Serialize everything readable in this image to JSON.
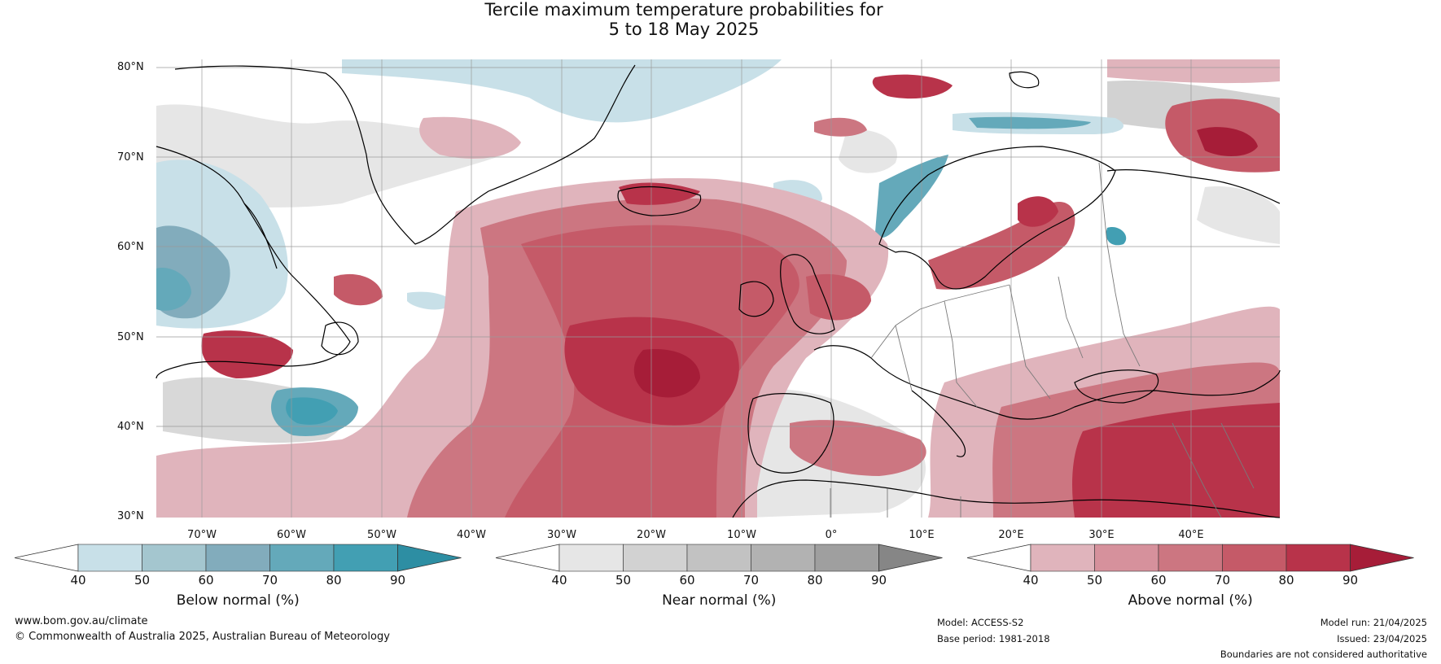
{
  "title": {
    "line1": "Tercile maximum temperature probabilities for",
    "line2": "5 to 18 May 2025"
  },
  "map": {
    "lat_labels": [
      "80°N",
      "70°N",
      "60°N",
      "50°N",
      "40°N",
      "30°N"
    ],
    "lon_labels": [
      "70°W",
      "60°W",
      "50°W",
      "40°W",
      "30°W",
      "20°W",
      "10°W",
      "0°",
      "10°E",
      "20°E",
      "30°E",
      "40°E"
    ],
    "extent": {
      "lon_min": -75,
      "lon_max": 50,
      "lat_min": 30,
      "lat_max": 81
    },
    "colors": {
      "ocean_below": [
        "#c8e0e8",
        "#a4c6cf",
        "#82acbc",
        "#64a9ba",
        "#429fb3",
        "#2d8ea3"
      ],
      "near": [
        "#e6e6e6",
        "#d2d2d2",
        "#c2c2c2",
        "#b2b2b2",
        "#9f9f9f",
        "#868686"
      ],
      "above": [
        "#e0b4bc",
        "#d6919c",
        "#cc7681",
        "#c55a68",
        "#b8334a",
        "#a61d38"
      ],
      "coast": "#000000",
      "border": "#7a7a7a",
      "grid": "#9a9a9a"
    }
  },
  "colorbars": [
    {
      "name": "below",
      "label": "Below normal (%)",
      "ticks": [
        "40",
        "50",
        "60",
        "70",
        "80",
        "90"
      ],
      "colors": [
        "#ffffff",
        "#c8e0e8",
        "#a4c6cf",
        "#82acbc",
        "#64a9ba",
        "#429fb3",
        "#2d8ea3"
      ]
    },
    {
      "name": "near",
      "label": "Near normal (%)",
      "ticks": [
        "40",
        "50",
        "60",
        "70",
        "80",
        "90"
      ],
      "colors": [
        "#ffffff",
        "#e6e6e6",
        "#d2d2d2",
        "#c2c2c2",
        "#b2b2b2",
        "#9f9f9f",
        "#868686"
      ]
    },
    {
      "name": "above",
      "label": "Above normal (%)",
      "ticks": [
        "40",
        "50",
        "60",
        "70",
        "80",
        "90"
      ],
      "colors": [
        "#ffffff",
        "#e0b4bc",
        "#d6919c",
        "#cc7681",
        "#c55a68",
        "#b8334a",
        "#a61d38"
      ]
    }
  ],
  "footer": {
    "website": "www.bom.gov.au/climate",
    "copyright": "© Commonwealth of Australia 2025, Australian Bureau of Meteorology",
    "model": "Model: ACCESS-S2",
    "base_period": "Base period: 1981-2018",
    "model_run": "Model run: 21/04/2025",
    "issued": "Issued: 23/04/2025",
    "disclaimer": "Boundaries are not considered authoritative"
  }
}
